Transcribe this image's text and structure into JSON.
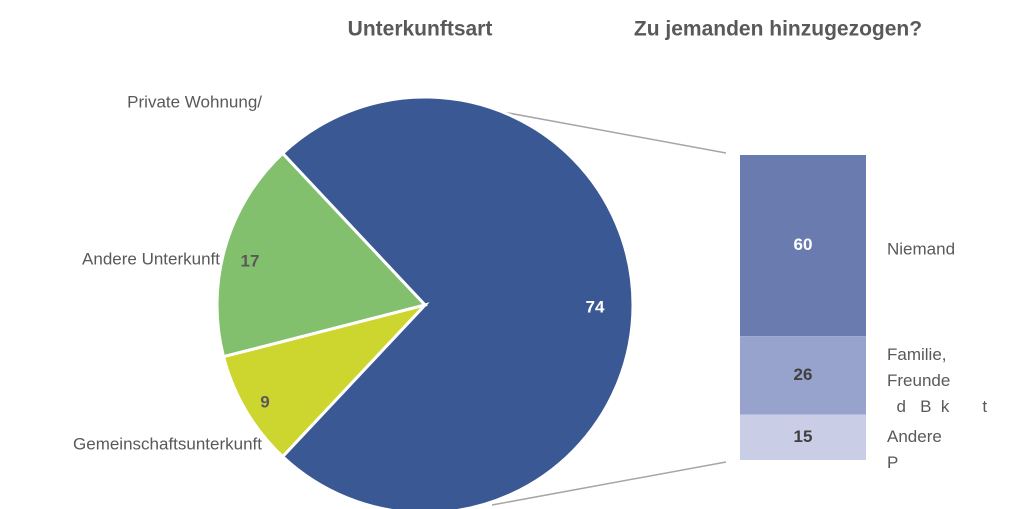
{
  "chart_data": [
    {
      "type": "pie",
      "title": "Unterkunftsart",
      "categories": [
        "Private Wohnung/",
        "Andere Unterkunft",
        "Gemeinschaftsunterkunft"
      ],
      "values": [
        74,
        17,
        9
      ],
      "colors": [
        "#3a5894",
        "#82c06e",
        "#cdd62f"
      ]
    },
    {
      "type": "stacked-bar",
      "title": "Zu jemanden hinzugezogen?",
      "categories": [
        "Niemand",
        "Familie,\nFreunde\n  d   B  k       t",
        "Andere\nP"
      ],
      "values": [
        60,
        26,
        15
      ],
      "colors": [
        "#6a7bb0",
        "#97a3cc",
        "#c9cee6"
      ]
    }
  ]
}
